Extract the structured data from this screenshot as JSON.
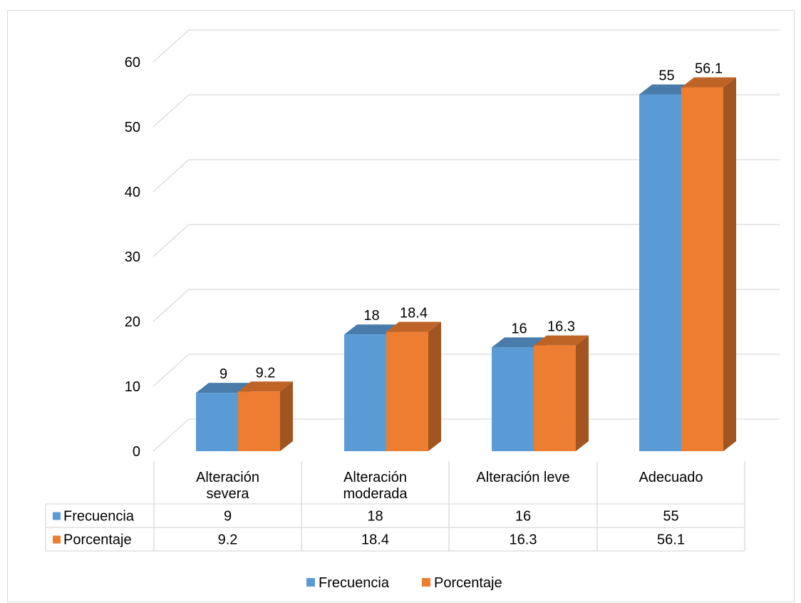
{
  "colors": {
    "frecuencia": "#5b9bd5",
    "porcentaje": "#ed7d31",
    "gridline": "#d9d9d9",
    "table_border": "#d9d9d9",
    "frame": "#d9d9d9"
  },
  "chart_data": {
    "type": "bar",
    "style": "3d-clustered-column-with-data-table",
    "categories": [
      [
        "Alteración",
        "severa"
      ],
      [
        "Alteración",
        "moderada"
      ],
      [
        "Alteración leve"
      ],
      [
        "Adecuado"
      ]
    ],
    "series": [
      {
        "name": "Frecuencia",
        "values": [
          9,
          18,
          16,
          55
        ],
        "value_labels": [
          "9",
          "18",
          "16",
          "55"
        ],
        "color": "#5b9bd5"
      },
      {
        "name": "Porcentaje",
        "values": [
          9.2,
          18.4,
          16.3,
          56.1
        ],
        "value_labels": [
          "9.2",
          "18.4",
          "16.3",
          "56.1"
        ],
        "color": "#ed7d31"
      }
    ],
    "ylim": [
      0,
      60
    ],
    "yticks": [
      0,
      10,
      20,
      30,
      40,
      50,
      60
    ],
    "ytick_labels": [
      "0",
      "10",
      "20",
      "30",
      "40",
      "50",
      "60"
    ],
    "grid": true,
    "data_table": true,
    "legend_position": "bottom"
  }
}
